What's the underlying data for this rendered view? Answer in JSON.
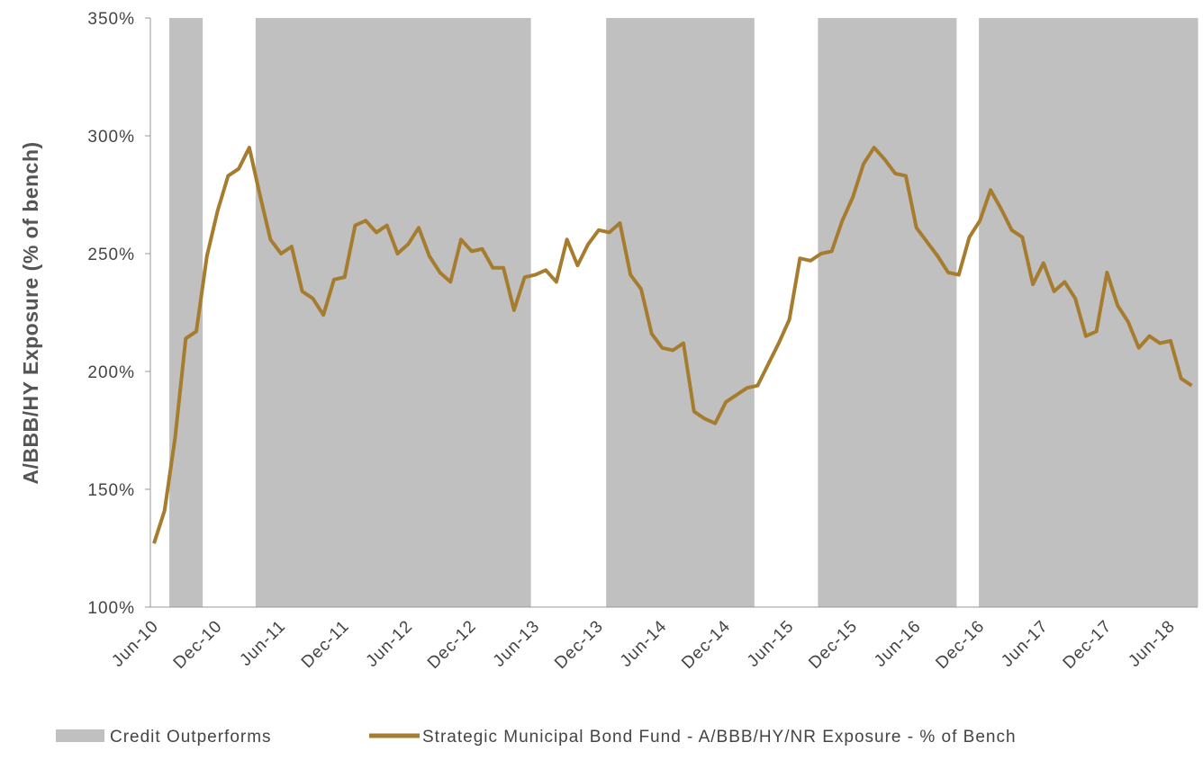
{
  "chart_data": {
    "type": "line",
    "y_label": "A/BBB/HY Exposure (% of bench)",
    "categories": [
      "Jun-10",
      null,
      null,
      null,
      null,
      null,
      "Dec-10",
      null,
      null,
      null,
      null,
      null,
      "Jun-11",
      null,
      null,
      null,
      null,
      null,
      "Dec-11",
      null,
      null,
      null,
      null,
      null,
      "Jun-12",
      null,
      null,
      null,
      null,
      null,
      "Dec-12",
      null,
      null,
      null,
      null,
      null,
      "Jun-13",
      null,
      null,
      null,
      null,
      null,
      "Dec-13",
      null,
      null,
      null,
      null,
      null,
      "Jun-14",
      null,
      null,
      null,
      null,
      null,
      "Dec-14",
      null,
      null,
      null,
      null,
      null,
      "Jun-15",
      null,
      null,
      null,
      null,
      null,
      "Dec-15",
      null,
      null,
      null,
      null,
      null,
      "Jun-16",
      null,
      null,
      null,
      null,
      null,
      "Dec-16",
      null,
      null,
      null,
      null,
      null,
      "Jun-17",
      null,
      null,
      null,
      null,
      null,
      "Dec-17",
      null,
      null,
      null,
      null,
      null,
      "Jun-18",
      null,
      null
    ],
    "shaded_regions": {
      "name": "Credit Outperforms",
      "color": "#c0c0c0",
      "spans": [
        [
          1.45,
          4.6
        ],
        [
          9.6,
          35.6
        ],
        [
          42.7,
          56.7
        ],
        [
          62.7,
          75.8
        ],
        [
          77.9,
          98.6
        ]
      ]
    },
    "series": [
      {
        "name": "Strategic Municipal Bond Fund - A/BBB/HY/NR Exposure - % of Bench",
        "color": "#a67c2e",
        "values": [
          127,
          141,
          172,
          214,
          217,
          249,
          268,
          283,
          286,
          295,
          275,
          256,
          250,
          253,
          234,
          231,
          224,
          239,
          240,
          262,
          264,
          259,
          262,
          250,
          254,
          261,
          249,
          242,
          238,
          256,
          251,
          252,
          244,
          244,
          226,
          240,
          241,
          243,
          238,
          256,
          245,
          254,
          260,
          259,
          263,
          241,
          235,
          216,
          210,
          209,
          212,
          183,
          180,
          178,
          187,
          190,
          193,
          194,
          203,
          212,
          222,
          248,
          247,
          250,
          251,
          264,
          274,
          288,
          295,
          290,
          284,
          283,
          261,
          255,
          249,
          242,
          241,
          257,
          264,
          277,
          269,
          260,
          257,
          237,
          246,
          234,
          238,
          231,
          215,
          217,
          242,
          228,
          221,
          210,
          215,
          212,
          213,
          197,
          194
        ]
      }
    ],
    "ylim": [
      100,
      350
    ],
    "yticks": [
      {
        "value": 100,
        "label": "100%"
      },
      {
        "value": 150,
        "label": "150%"
      },
      {
        "value": 200,
        "label": "200%"
      },
      {
        "value": 250,
        "label": "250%"
      },
      {
        "value": 300,
        "label": "300%"
      },
      {
        "value": 350,
        "label": "350%"
      }
    ]
  }
}
